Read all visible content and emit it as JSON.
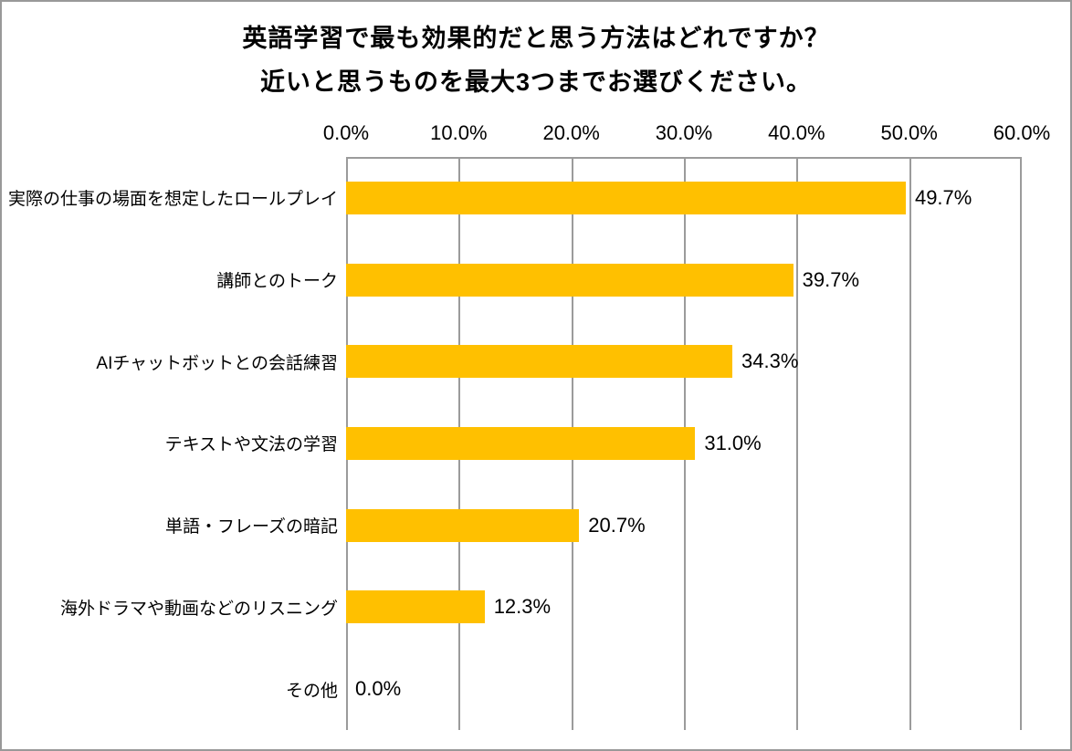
{
  "page": {
    "background_color": "#FFFFFF",
    "frame_color": "#999999"
  },
  "chart_data": {
    "type": "bar",
    "orientation": "horizontal",
    "title_lines": [
      "英語学習で最も効果的だと思う方法はどれですか？",
      "近いと思うものを最大3つまでお選びください。"
    ],
    "categories": [
      "実際の仕事の場面を想定したロールプレイ",
      "講師とのトーク",
      "AIチャットボットとの会話練習",
      "テキストや文法の学習",
      "単語・フレーズの暗記",
      "海外ドラマや動画などのリスニング",
      "その他"
    ],
    "values": [
      49.7,
      39.7,
      34.3,
      31.0,
      20.7,
      12.3,
      0.0
    ],
    "value_labels": [
      "49.7%",
      "39.7%",
      "34.3%",
      "31.0%",
      "20.7%",
      "12.3%",
      "0.0%"
    ],
    "x_ticks": [
      "0.0%",
      "10.0%",
      "20.0%",
      "30.0%",
      "40.0%",
      "50.0%",
      "60.0%"
    ],
    "x_tick_values": [
      0,
      10,
      20,
      30,
      40,
      50,
      60
    ],
    "xlim": [
      0,
      60
    ],
    "xlabel": "",
    "ylabel": "",
    "bar_color": "#FFC000",
    "grid_color": "#9B9B9B",
    "grid": "vertical",
    "legend_position": "none",
    "value_axis_position": "top"
  }
}
